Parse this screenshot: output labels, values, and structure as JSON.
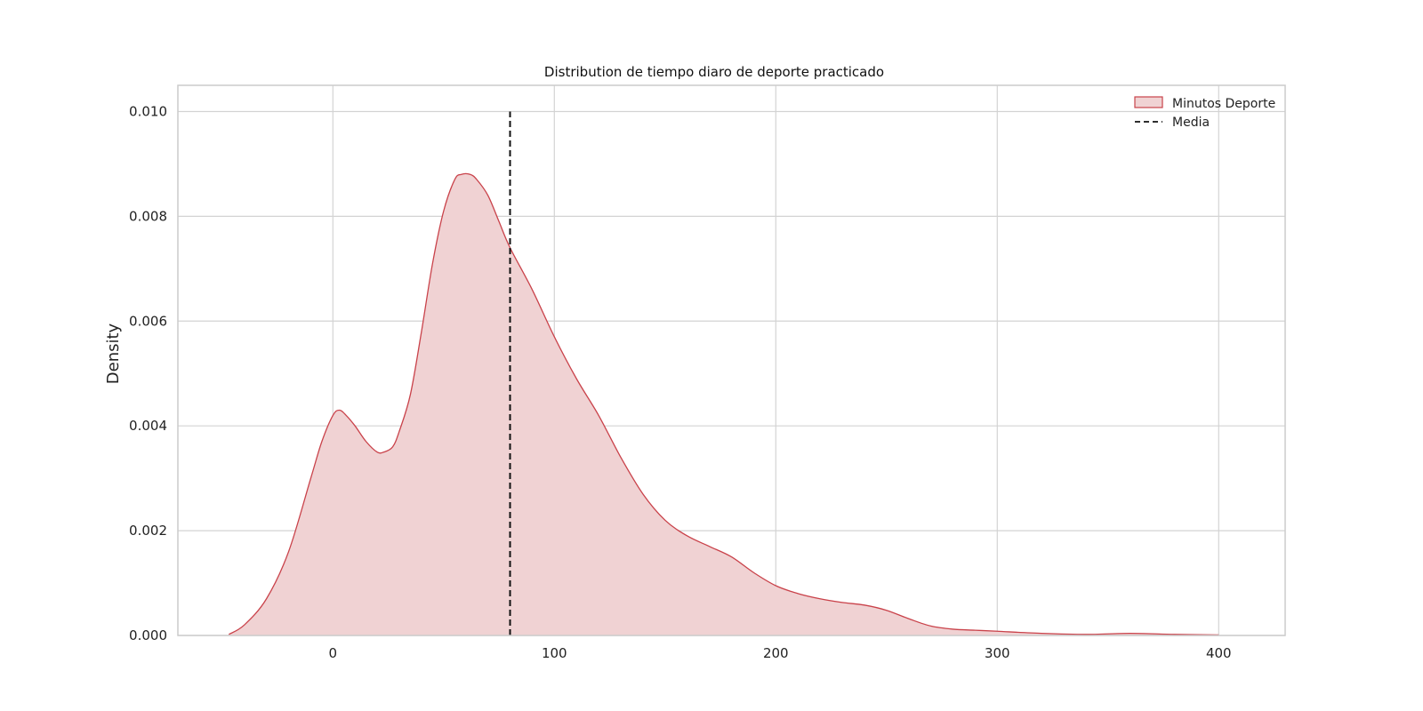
{
  "chart_data": {
    "type": "area",
    "title": "Distribution de tiempo diaro de deporte practicado",
    "xlabel": "",
    "ylabel": "Density",
    "xlim": [
      -70,
      430
    ],
    "ylim": [
      0,
      0.0105
    ],
    "xticks": [
      0,
      100,
      200,
      300,
      400
    ],
    "yticks": [
      0.0,
      0.002,
      0.004,
      0.006,
      0.008,
      0.01
    ],
    "ytick_labels": [
      "0.000",
      "0.002",
      "0.004",
      "0.006",
      "0.008",
      "0.010"
    ],
    "grid": true,
    "legend_position": "top-right",
    "series": [
      {
        "name": "Minutos Deporte",
        "kind": "kde-fill",
        "color": "#c9424a",
        "fill": "#f0d2d3",
        "x": [
          -47,
          -40,
          -30,
          -20,
          -10,
          -5,
          0,
          3,
          6,
          10,
          15,
          20,
          23,
          27,
          30,
          35,
          40,
          45,
          50,
          55,
          58,
          62,
          65,
          70,
          75,
          80,
          90,
          100,
          110,
          120,
          130,
          140,
          150,
          160,
          170,
          180,
          190,
          200,
          210,
          220,
          230,
          240,
          250,
          260,
          270,
          280,
          290,
          300,
          320,
          340,
          360,
          380,
          400
        ],
        "y": [
          2e-05,
          0.0002,
          0.0007,
          0.0016,
          0.003,
          0.0037,
          0.0042,
          0.0043,
          0.0042,
          0.004,
          0.0037,
          0.0035,
          0.0035,
          0.0036,
          0.0039,
          0.0046,
          0.0058,
          0.0071,
          0.0081,
          0.0087,
          0.0088,
          0.0088,
          0.0087,
          0.0084,
          0.0079,
          0.0074,
          0.0066,
          0.0057,
          0.0049,
          0.0042,
          0.0034,
          0.0027,
          0.0022,
          0.0019,
          0.0017,
          0.0015,
          0.0012,
          0.00095,
          0.0008,
          0.0007,
          0.00063,
          0.00058,
          0.00048,
          0.00032,
          0.00018,
          0.00012,
          0.0001,
          8e-05,
          4e-05,
          2e-05,
          4e-05,
          2e-05,
          1e-05
        ]
      },
      {
        "name": "Media",
        "kind": "vline",
        "color": "#111111",
        "x": 80,
        "y_range": [
          0,
          0.01
        ]
      }
    ]
  }
}
